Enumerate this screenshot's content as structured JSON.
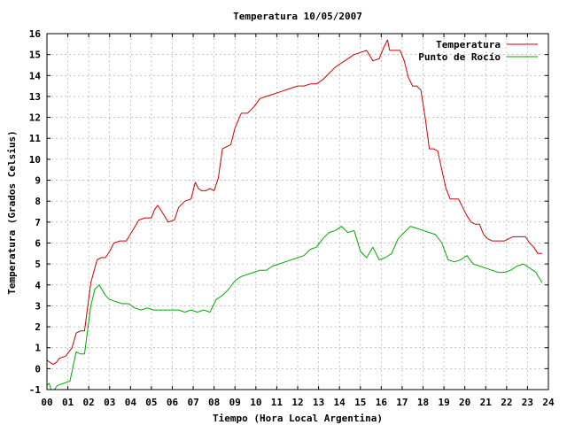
{
  "chart_data": {
    "type": "line",
    "title": "Temperatura 10/05/2007",
    "xlabel": "Tiempo (Hora Local Argentina)",
    "ylabel": "Temperatura (Grados Celsius)",
    "xlim": [
      0,
      24
    ],
    "ylim": [
      -1,
      16
    ],
    "xticks": [
      "00",
      "01",
      "02",
      "03",
      "04",
      "05",
      "06",
      "07",
      "08",
      "09",
      "10",
      "11",
      "12",
      "13",
      "14",
      "15",
      "16",
      "17",
      "18",
      "19",
      "20",
      "21",
      "22",
      "23",
      "24"
    ],
    "yticks": [
      "-1",
      "0",
      "1",
      "2",
      "3",
      "4",
      "5",
      "6",
      "7",
      "8",
      "9",
      "10",
      "11",
      "12",
      "13",
      "14",
      "15",
      "16"
    ],
    "grid": true,
    "legend_position": "top-right",
    "series": [
      {
        "name": "Temperatura",
        "color": "#cc0000",
        "x": [
          0.0,
          0.15,
          0.3,
          0.45,
          0.6,
          0.9,
          1.2,
          1.4,
          1.6,
          1.8,
          2.1,
          2.4,
          2.6,
          2.8,
          3.0,
          3.2,
          3.5,
          3.8,
          4.1,
          4.4,
          4.7,
          5.0,
          5.15,
          5.3,
          5.5,
          5.8,
          6.1,
          6.3,
          6.6,
          6.9,
          7.1,
          7.25,
          7.4,
          7.6,
          7.8,
          8.0,
          8.2,
          8.4,
          8.6,
          8.8,
          9.0,
          9.3,
          9.6,
          9.9,
          10.2,
          10.5,
          10.8,
          11.1,
          11.4,
          11.7,
          12.0,
          12.3,
          12.6,
          12.9,
          13.2,
          13.5,
          13.8,
          14.1,
          14.4,
          14.7,
          15.0,
          15.3,
          15.6,
          15.9,
          16.1,
          16.3,
          16.4,
          16.6,
          16.9,
          17.1,
          17.3,
          17.5,
          17.7,
          17.9,
          18.1,
          18.3,
          18.5,
          18.7,
          18.9,
          19.1,
          19.3,
          19.5,
          19.7,
          19.9,
          20.1,
          20.3,
          20.5,
          20.7,
          20.9,
          21.1,
          21.3,
          21.5,
          21.7,
          21.9,
          22.1,
          22.3,
          22.5,
          22.7,
          22.9,
          23.1,
          23.3,
          23.5,
          23.7
        ],
        "values": [
          0.4,
          0.3,
          0.2,
          0.3,
          0.5,
          0.6,
          1.0,
          1.7,
          1.8,
          1.8,
          4.1,
          5.2,
          5.3,
          5.3,
          5.6,
          6.0,
          6.1,
          6.1,
          6.6,
          7.1,
          7.2,
          7.2,
          7.6,
          7.8,
          7.5,
          7.0,
          7.1,
          7.7,
          8.0,
          8.1,
          8.9,
          8.6,
          8.5,
          8.5,
          8.6,
          8.5,
          9.1,
          10.5,
          10.6,
          10.7,
          11.5,
          12.2,
          12.2,
          12.5,
          12.9,
          13.0,
          13.1,
          13.2,
          13.3,
          13.4,
          13.5,
          13.5,
          13.6,
          13.6,
          13.8,
          14.1,
          14.4,
          14.6,
          14.8,
          15.0,
          15.1,
          15.2,
          14.7,
          14.8,
          15.3,
          15.7,
          15.2,
          15.2,
          15.2,
          14.7,
          13.9,
          13.5,
          13.5,
          13.3,
          12.0,
          10.5,
          10.5,
          10.4,
          9.5,
          8.6,
          8.1,
          8.1,
          8.1,
          7.7,
          7.3,
          7.0,
          6.9,
          6.9,
          6.4,
          6.2,
          6.1,
          6.1,
          6.1,
          6.1,
          6.2,
          6.3,
          6.3,
          6.3,
          6.3,
          6.0,
          5.8,
          5.5,
          5.5
        ]
      },
      {
        "name": "Punto de Rocío",
        "color": "#00aa00",
        "x": [
          0.0,
          0.1,
          0.2,
          0.35,
          0.5,
          0.8,
          1.1,
          1.4,
          1.6,
          1.8,
          2.1,
          2.3,
          2.5,
          2.8,
          3.0,
          3.3,
          3.6,
          3.9,
          4.2,
          4.5,
          4.8,
          5.1,
          5.4,
          5.7,
          6.0,
          6.3,
          6.6,
          6.9,
          7.2,
          7.5,
          7.8,
          8.1,
          8.4,
          8.7,
          9.0,
          9.3,
          9.6,
          9.9,
          10.2,
          10.5,
          10.8,
          11.1,
          11.4,
          11.7,
          12.0,
          12.3,
          12.6,
          12.9,
          13.2,
          13.5,
          13.8,
          14.1,
          14.4,
          14.7,
          15.0,
          15.3,
          15.6,
          15.9,
          16.2,
          16.5,
          16.8,
          17.1,
          17.4,
          17.7,
          18.0,
          18.3,
          18.6,
          18.9,
          19.2,
          19.5,
          19.8,
          20.1,
          20.4,
          20.7,
          21.0,
          21.3,
          21.6,
          21.9,
          22.2,
          22.5,
          22.8,
          23.1,
          23.4,
          23.7
        ],
        "values": [
          -0.8,
          -0.7,
          -1.0,
          -1.0,
          -0.8,
          -0.7,
          -0.6,
          0.8,
          0.7,
          0.7,
          3.0,
          3.8,
          4.0,
          3.5,
          3.3,
          3.2,
          3.1,
          3.1,
          2.9,
          2.8,
          2.9,
          2.8,
          2.8,
          2.8,
          2.8,
          2.8,
          2.7,
          2.8,
          2.7,
          2.8,
          2.7,
          3.3,
          3.5,
          3.8,
          4.2,
          4.4,
          4.5,
          4.6,
          4.7,
          4.7,
          4.9,
          5.0,
          5.1,
          5.2,
          5.3,
          5.4,
          5.7,
          5.8,
          6.2,
          6.5,
          6.6,
          6.8,
          6.5,
          6.6,
          5.6,
          5.3,
          5.8,
          5.2,
          5.3,
          5.5,
          6.2,
          6.5,
          6.8,
          6.7,
          6.6,
          6.5,
          6.4,
          6.0,
          5.2,
          5.1,
          5.2,
          5.4,
          5.0,
          4.9,
          4.8,
          4.7,
          4.6,
          4.6,
          4.7,
          4.9,
          5.0,
          4.8,
          4.6,
          4.1
        ]
      }
    ]
  }
}
